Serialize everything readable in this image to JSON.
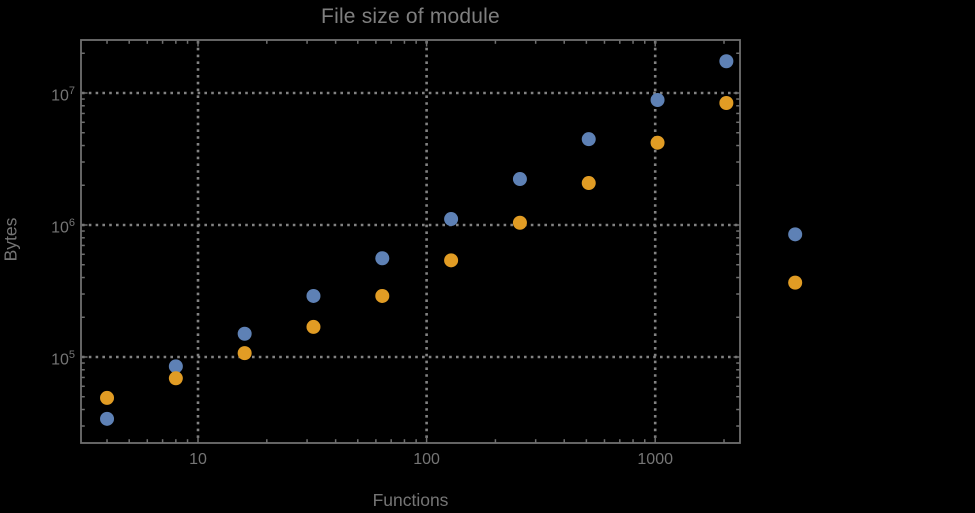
{
  "window": {
    "background": "#000000"
  },
  "chart_data": {
    "type": "scatter",
    "title": "File size of module",
    "xlabel": "Functions",
    "ylabel": "Bytes",
    "x_scale": "log",
    "y_scale": "log",
    "grid": "dotted",
    "legend": "none",
    "x": [
      4,
      8,
      16,
      32,
      64,
      128,
      256,
      512,
      1024,
      2048,
      4096
    ],
    "series": [
      {
        "name": "blue-series",
        "color": "#5E81B5",
        "values": [
          34000,
          85000,
          150000,
          290000,
          560000,
          1110000,
          2230000,
          4470000,
          8850000,
          17400000,
          850000
        ]
      },
      {
        "name": "orange-series",
        "color": "#E19C24",
        "values": [
          49000,
          69000,
          107000,
          169000,
          290000,
          540000,
          1040000,
          2080000,
          4200000,
          8400000,
          366000
        ]
      }
    ],
    "x_ticks": [
      {
        "value": 10,
        "label": "10"
      },
      {
        "value": 100,
        "label": "100"
      },
      {
        "value": 1000,
        "label": "1000"
      }
    ],
    "y_ticks": [
      {
        "value": 100000,
        "base": "10",
        "exp": "5"
      },
      {
        "value": 1000000,
        "base": "10",
        "exp": "6"
      },
      {
        "value": 10000000,
        "base": "10",
        "exp": "7"
      }
    ],
    "xlim": [
      3.1,
      2350
    ],
    "ylim": [
      22000,
      25000000
    ],
    "colors": {
      "background": "#000000",
      "frame": "#6f6f6f",
      "grid": "#828282",
      "tick": "#6f6f6f",
      "text": "#757575",
      "title": "#7f7f7f"
    }
  }
}
